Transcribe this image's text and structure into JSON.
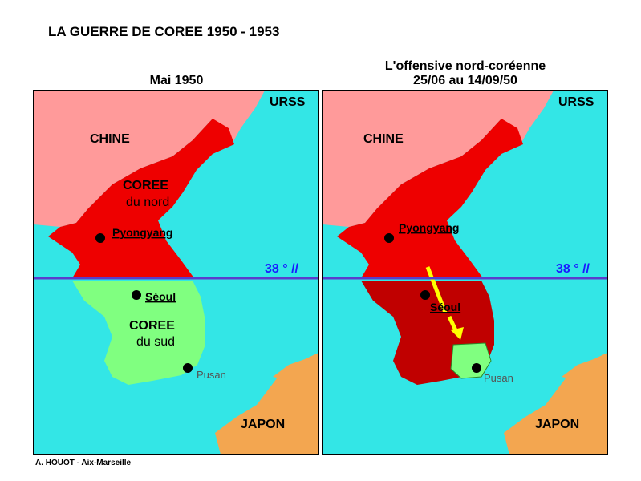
{
  "header": {
    "title": "LA GUERRE DE COREE 1950 - 1953"
  },
  "maps": [
    {
      "title_lines": [
        "Mai 1950"
      ],
      "labels": [
        "URSS",
        "CHINE",
        "COREE",
        "du nord",
        "Pyongyang",
        "38 ° //",
        "Séoul",
        "COREE",
        "du sud",
        "Pusan",
        "JAPON"
      ]
    },
    {
      "title_lines": [
        "L'offensive nord-coréenne",
        "25/06 au 14/09/50"
      ],
      "labels": [
        "URSS",
        "CHINE",
        "Pyongyang",
        "38 ° //",
        "Séoul",
        "Pusan",
        "JAPON"
      ]
    }
  ],
  "footer": {
    "credit": "A. HOUOT - Aix-Marseille"
  }
}
